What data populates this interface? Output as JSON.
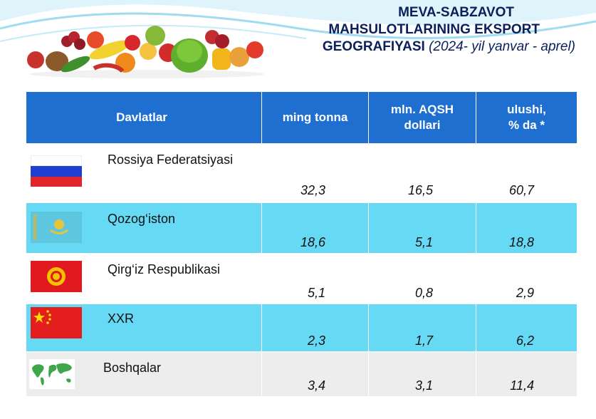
{
  "title": {
    "line1": "MEVA-SABZAVOT",
    "line2": "MAHSULOTLARINING EKSPORT",
    "line3": "GEOGRAFIYASI",
    "period": "(2024- yil yanvar - aprel)"
  },
  "table": {
    "headers": {
      "country": "Davlatlar",
      "tonnage": "ming tonna",
      "value_l1": "mln. AQSH",
      "value_l2": "dollari",
      "share_l1": "ulushi,",
      "share_l2": "% da *"
    },
    "rows": [
      {
        "country": "Rossiya Federatsiyasi",
        "flag_icon": "russia-flag-icon",
        "tonnage": "32,3",
        "value": "16,5",
        "share": "60,7"
      },
      {
        "country": "Qozog‘iston",
        "flag_icon": "kazakhstan-flag-icon",
        "tonnage": "18,6",
        "value": "5,1",
        "share": "18,8"
      },
      {
        "country": "Qirg‘iz Respublikasi",
        "flag_icon": "kyrgyzstan-flag-icon",
        "tonnage": "5,1",
        "value": "0,8",
        "share": "2,9"
      },
      {
        "country": "XXR",
        "flag_icon": "china-flag-icon",
        "tonnage": "2,3",
        "value": "1,7",
        "share": "6,2"
      },
      {
        "country": "Boshqalar",
        "flag_icon": "world-map-icon",
        "tonnage": "3,4",
        "value": "3,1",
        "share": "11,4"
      }
    ]
  },
  "colors": {
    "header_blue": "#1f6fd1",
    "row_light_blue": "#66d9f5",
    "row_gray": "#ededed",
    "title_navy": "#0a1f5c"
  }
}
